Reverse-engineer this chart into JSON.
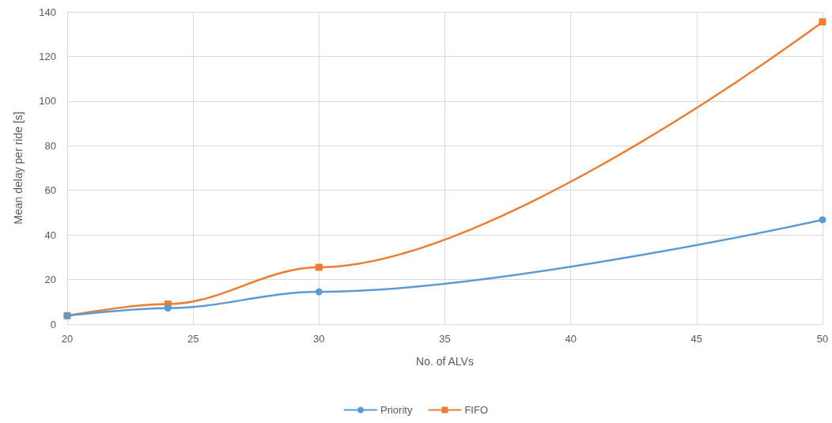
{
  "chart_data": {
    "type": "line",
    "xlabel": "No. of ALVs",
    "ylabel": "Mean delay per ride [s]",
    "x": [
      20,
      24,
      30,
      50
    ],
    "series": [
      {
        "name": "Priority",
        "color": "#5b9bd5",
        "marker": "circle",
        "values": [
          3.8,
          7.2,
          14.5,
          46.8
        ]
      },
      {
        "name": "FIFO",
        "color": "#ed7d31",
        "marker": "square",
        "values": [
          3.8,
          9,
          25.5,
          135.5
        ]
      }
    ],
    "xlim": [
      20,
      50
    ],
    "xticks": [
      20,
      25,
      30,
      35,
      40,
      45,
      50
    ],
    "ylim": [
      0,
      140
    ],
    "yticks": [
      0,
      20,
      40,
      60,
      80,
      100,
      120,
      140
    ],
    "grid": true,
    "legend": "bottom",
    "line_style": "solid"
  }
}
